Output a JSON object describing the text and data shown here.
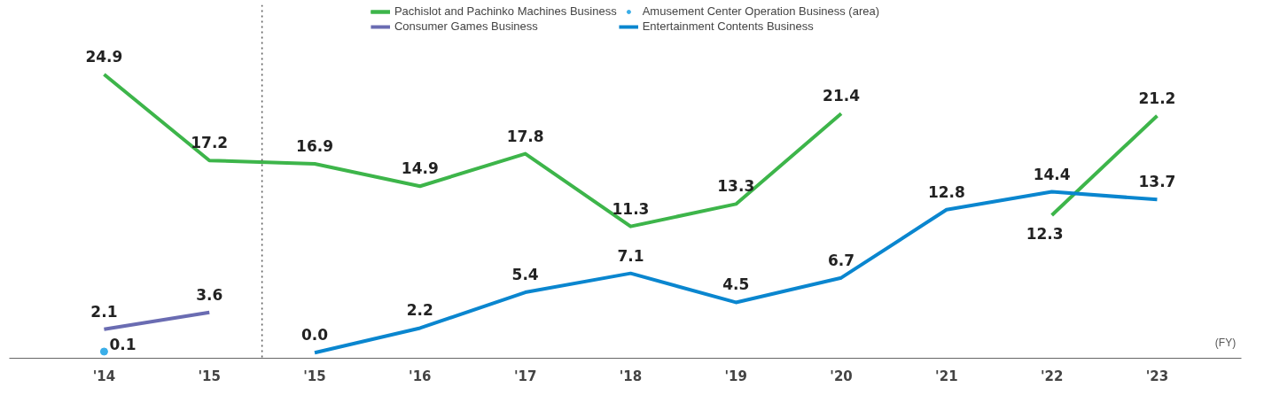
{
  "chart_data": {
    "type": "line",
    "xlabel": "(FY)",
    "categories": [
      "'14",
      "'15",
      "'15",
      "'16",
      "'17",
      "'18",
      "'19",
      "'20",
      "'21",
      "'22",
      "'23"
    ],
    "series": [
      {
        "name": "Pachislot and Pachinko Machines Business",
        "color": "#3db54a",
        "values": [
          24.9,
          17.2,
          16.9,
          14.9,
          17.8,
          11.3,
          13.3,
          21.4,
          null,
          12.3,
          21.2
        ],
        "value_labels": [
          "24.9",
          "17.2",
          "16.9",
          "14.9",
          "17.8",
          "11.3",
          "13.3",
          "21.4",
          null,
          "12.3",
          "21.2"
        ],
        "marker": "none"
      },
      {
        "name": "Amusement Center Operation Business (area)",
        "color": "#3aaee8",
        "values": [
          0.1,
          null,
          null,
          null,
          null,
          null,
          null,
          null,
          null,
          null,
          null
        ],
        "value_labels": [
          "0.1",
          null,
          null,
          null,
          null,
          null,
          null,
          null,
          null,
          null,
          null
        ],
        "marker": "circle"
      },
      {
        "name": "Consumer Games Business",
        "color": "#6a6cb2",
        "values": [
          2.1,
          3.6,
          null,
          null,
          null,
          null,
          null,
          null,
          null,
          null,
          null
        ],
        "value_labels": [
          "2.1",
          "3.6",
          null,
          null,
          null,
          null,
          null,
          null,
          null,
          null,
          null
        ],
        "marker": "none"
      },
      {
        "name": "Entertainment Contents Business",
        "color": "#0a86cf",
        "values": [
          null,
          null,
          0.0,
          2.2,
          5.4,
          7.1,
          4.5,
          6.7,
          12.8,
          14.4,
          13.7
        ],
        "value_labels": [
          null,
          null,
          "0.0",
          "2.2",
          "5.4",
          "7.1",
          "4.5",
          "6.7",
          "12.8",
          "14.4",
          "13.7"
        ],
        "marker": "none"
      }
    ],
    "legend": "top",
    "line_style": "solid",
    "grid": false
  }
}
